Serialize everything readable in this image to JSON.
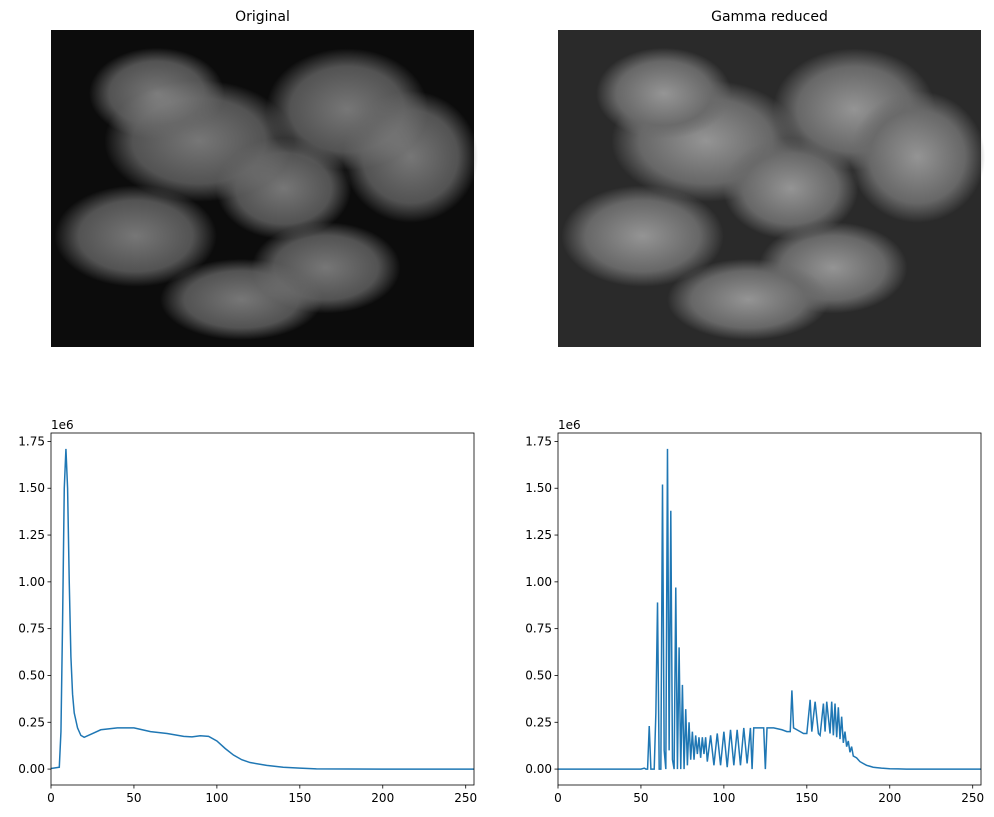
{
  "chart_data": [
    {
      "type": "image",
      "title": "Original"
    },
    {
      "type": "image",
      "title": "Gamma reduced"
    },
    {
      "type": "line",
      "y_offset_text": "1e6",
      "x": [
        0,
        5,
        6,
        7,
        8,
        9,
        10,
        11,
        12,
        13,
        14,
        16,
        18,
        20,
        25,
        30,
        40,
        50,
        55,
        60,
        70,
        80,
        85,
        90,
        95,
        100,
        105,
        110,
        115,
        120,
        130,
        140,
        150,
        160,
        200,
        255
      ],
      "values": [
        0.003,
        0.01,
        0.2,
        0.8,
        1.5,
        1.71,
        1.5,
        1.0,
        0.6,
        0.4,
        0.3,
        0.22,
        0.18,
        0.17,
        0.19,
        0.21,
        0.22,
        0.22,
        0.21,
        0.2,
        0.19,
        0.175,
        0.172,
        0.178,
        0.175,
        0.15,
        0.11,
        0.075,
        0.05,
        0.035,
        0.02,
        0.01,
        0.005,
        0.001,
        0,
        0
      ],
      "color": "#1f77b4",
      "xlim": [
        0,
        255
      ],
      "ylim": [
        -0.085,
        1.795
      ],
      "xticks": [
        0,
        50,
        100,
        150,
        200,
        250
      ],
      "yticks": [
        {
          "value": 0,
          "label": "0.00"
        },
        0.25,
        {
          "value": 0.5,
          "label": "0.50"
        },
        0.75,
        {
          "value": 1,
          "label": "1.00"
        },
        1.25,
        {
          "value": 1.5,
          "label": "1.50"
        },
        1.75
      ]
    },
    {
      "type": "line",
      "y_offset_text": "1e6",
      "x": [
        0,
        50,
        52,
        53,
        54,
        55,
        56,
        58,
        59,
        60,
        61,
        62,
        63,
        64,
        65,
        66,
        67,
        68,
        69,
        70,
        71,
        72,
        73,
        74,
        75,
        76,
        77,
        78,
        79,
        80,
        81,
        82,
        83,
        84,
        85,
        86,
        87,
        88,
        89,
        90,
        92,
        94,
        96,
        98,
        100,
        102,
        104,
        106,
        108,
        110,
        112,
        114,
        116,
        117,
        118,
        120,
        122,
        124,
        125,
        126,
        128,
        130,
        135,
        138,
        140,
        141,
        142,
        144,
        146,
        148,
        150,
        152,
        153,
        155,
        157,
        158,
        160,
        161,
        162,
        164,
        165,
        166,
        167,
        168,
        169,
        170,
        171,
        172,
        173,
        174,
        175,
        176,
        177,
        178,
        180,
        182,
        184,
        186,
        188,
        190,
        192,
        195,
        200,
        205,
        210,
        255
      ],
      "values": [
        0,
        0,
        0.005,
        0,
        0,
        0.23,
        0,
        0,
        0.3,
        0.89,
        0,
        0,
        1.52,
        0.1,
        0,
        1.71,
        0.1,
        1.38,
        0.05,
        0,
        0.97,
        0,
        0.65,
        0,
        0.45,
        0,
        0.32,
        0.02,
        0.25,
        0.05,
        0.2,
        0.05,
        0.18,
        0.08,
        0.17,
        0.06,
        0.17,
        0.08,
        0.17,
        0.04,
        0.18,
        0.02,
        0.19,
        0.02,
        0.2,
        0.01,
        0.21,
        0.02,
        0.21,
        0.02,
        0.22,
        0.03,
        0.22,
        0,
        0.22,
        0.22,
        0.22,
        0.22,
        0,
        0.22,
        0.22,
        0.22,
        0.21,
        0.2,
        0.2,
        0.42,
        0.22,
        0.21,
        0.2,
        0.19,
        0.19,
        0.37,
        0.2,
        0.36,
        0.19,
        0.18,
        0.35,
        0.2,
        0.36,
        0.19,
        0.36,
        0.18,
        0.35,
        0.17,
        0.33,
        0.16,
        0.28,
        0.14,
        0.2,
        0.12,
        0.15,
        0.09,
        0.12,
        0.07,
        0.06,
        0.04,
        0.03,
        0.02,
        0.015,
        0.01,
        0.008,
        0.005,
        0.002,
        0.001,
        0,
        0
      ],
      "color": "#1f77b4",
      "xlim": [
        0,
        255
      ],
      "ylim": [
        -0.085,
        1.795
      ],
      "xticks": [
        0,
        50,
        100,
        150,
        200,
        250
      ],
      "yticks": [
        {
          "value": 0,
          "label": "0.00"
        },
        0.25,
        {
          "value": 0.5,
          "label": "0.50"
        },
        0.75,
        {
          "value": 1,
          "label": "1.00"
        },
        1.25,
        {
          "value": 1.5,
          "label": "1.50"
        },
        1.75
      ]
    }
  ]
}
